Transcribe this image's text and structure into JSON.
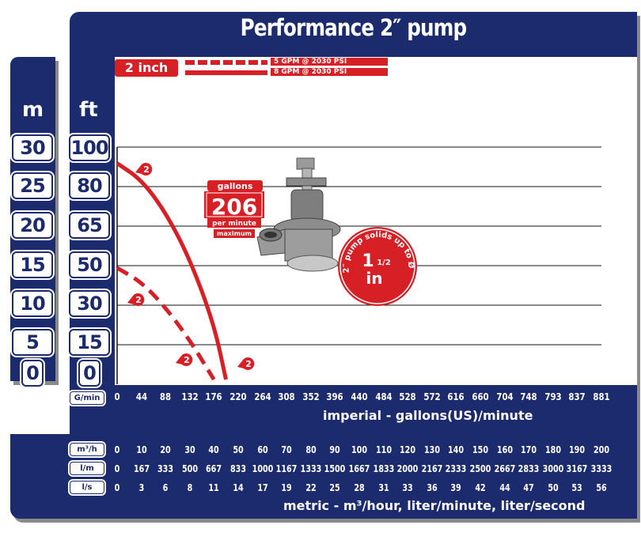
{
  "title": "Performance 2″ pump",
  "legend": {
    "size_label": "2 inch",
    "entries": [
      {
        "text": "5 GPM @ 2030 PSI",
        "style": "dashed"
      },
      {
        "text": "8 GPM @ 2030 PSI",
        "style": "solid"
      }
    ]
  },
  "left_axis_units": {
    "meters": "m",
    "feet": "ft"
  },
  "meter_ticks": [
    "30",
    "25",
    "20",
    "15",
    "10",
    "5",
    "0"
  ],
  "feet_ticks": [
    "100",
    "80",
    "65",
    "50",
    "30",
    "15",
    "0"
  ],
  "gallons_badge": {
    "top": "gallons",
    "value": "206",
    "sub": "per minute",
    "note": "maximum"
  },
  "solids_badge": {
    "arc_text": "2″ pump solids up to Ø",
    "whole": "1",
    "fraction": "1/2",
    "unit": "in"
  },
  "curve_marker": "2",
  "x_axis": {
    "label": "G/min",
    "ticks": [
      "0",
      "44",
      "88",
      "132",
      "176",
      "220",
      "264",
      "308",
      "352",
      "396",
      "440",
      "484",
      "528",
      "572",
      "616",
      "660",
      "704",
      "748",
      "793",
      "837",
      "881"
    ],
    "caption": "imperial - gallons(US)/minute"
  },
  "metric": {
    "rows": [
      {
        "label": "m³/h",
        "values": [
          "0",
          "10",
          "20",
          "30",
          "40",
          "50",
          "60",
          "70",
          "80",
          "90",
          "100",
          "110",
          "120",
          "130",
          "140",
          "150",
          "160",
          "170",
          "180",
          "190",
          "200"
        ]
      },
      {
        "label": "l/m",
        "values": [
          "0",
          "167",
          "333",
          "500",
          "667",
          "833",
          "1000",
          "1167",
          "1333",
          "1500",
          "1667",
          "1833",
          "2000",
          "2167",
          "2333",
          "2500",
          "2667",
          "2833",
          "3000",
          "3167",
          "3333"
        ]
      },
      {
        "label": "l/s",
        "values": [
          "0",
          "3",
          "6",
          "8",
          "11",
          "14",
          "17",
          "19",
          "22",
          "25",
          "28",
          "31",
          "33",
          "36",
          "39",
          "42",
          "44",
          "47",
          "50",
          "53",
          "56"
        ]
      },
      {
        "label": "",
        "values": []
      }
    ],
    "caption": "metric - m³/hour, liter/minute, liter/second"
  },
  "colors": {
    "navy": "#1c2a6e",
    "red": "#d71f26"
  },
  "chart_data": {
    "type": "line",
    "x_unit": "G/min",
    "y_unit": "ft",
    "xlim": [
      0,
      881
    ],
    "ylim": [
      0,
      100
    ],
    "series": [
      {
        "name": "8 GPM @ 2030 PSI",
        "style": "solid",
        "x": [
          0,
          44,
          88,
          132,
          176,
          198
        ],
        "y": [
          93,
          86,
          72,
          52,
          24,
          0
        ]
      },
      {
        "name": "5 GPM @ 2030 PSI",
        "style": "dashed",
        "x": [
          0,
          44,
          88,
          132,
          176
        ],
        "y": [
          48,
          42,
          31,
          17,
          0
        ]
      }
    ]
  }
}
